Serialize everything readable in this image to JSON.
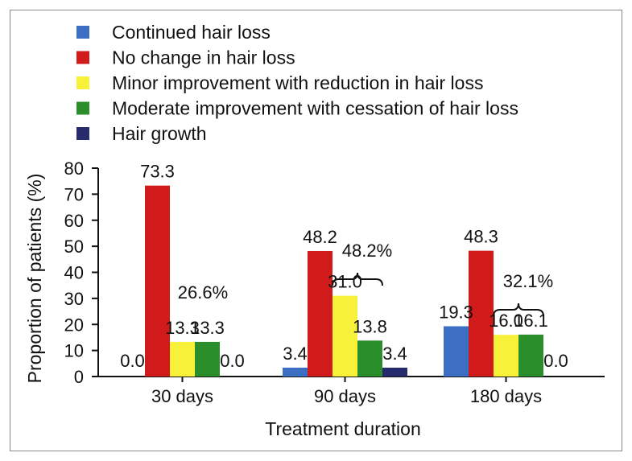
{
  "chart_data": {
    "type": "bar",
    "categories": [
      "30 days",
      "90 days",
      "180 days"
    ],
    "series": [
      {
        "name": "Continued hair loss",
        "color": "#3c6fc4",
        "values": [
          0.0,
          3.4,
          19.3
        ],
        "labels": [
          "0.0",
          "3.4",
          "19.3"
        ]
      },
      {
        "name": "No change in hair loss",
        "color": "#d11b1b",
        "values": [
          73.3,
          48.2,
          48.3
        ],
        "labels": [
          "73.3",
          "48.2",
          "48.3"
        ]
      },
      {
        "name": "Minor improvement with reduction in hair loss",
        "color": "#f7f13a",
        "values": [
          13.3,
          31.0,
          16.0
        ],
        "labels": [
          "13.3",
          "31.0",
          "16.0"
        ]
      },
      {
        "name": "Moderate improvement with cessation of hair loss",
        "color": "#2a8f2a",
        "values": [
          13.3,
          13.8,
          16.1
        ],
        "labels": [
          "13.3",
          "13.8",
          "16.1"
        ]
      },
      {
        "name": "Hair growth",
        "color": "#262b6e",
        "values": [
          0.0,
          3.4,
          0.0
        ],
        "labels": [
          "0.0",
          "3.4",
          "0.0"
        ]
      }
    ],
    "annotations": [
      "26.6%",
      "48.2%",
      "32.1%"
    ],
    "xlabel": "Treatment duration",
    "ylabel": "Proportion of patients (%)",
    "ylim": [
      0,
      80
    ],
    "yticks": [
      0,
      10,
      20,
      30,
      40,
      50,
      60,
      70,
      80
    ],
    "grid": false,
    "legend_position": "top"
  }
}
